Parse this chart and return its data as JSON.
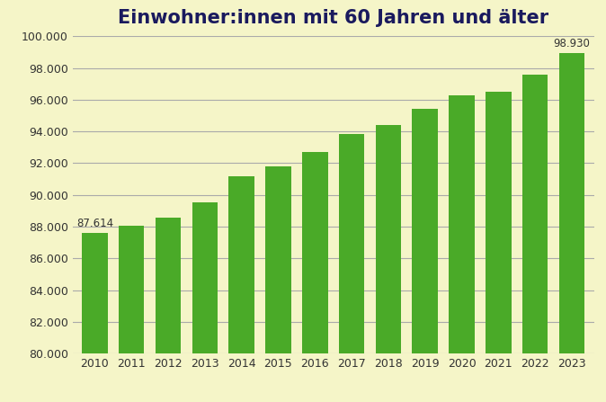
{
  "title": "Einwohner:innen mit 60 Jahren und älter",
  "years": [
    2010,
    2011,
    2012,
    2013,
    2014,
    2015,
    2016,
    2017,
    2018,
    2019,
    2020,
    2021,
    2022,
    2023
  ],
  "values": [
    87614,
    88050,
    88550,
    89550,
    91200,
    91780,
    92700,
    93850,
    94400,
    95400,
    96300,
    96500,
    97550,
    98930
  ],
  "bar_color": "#4aaa28",
  "background_color": "#f5f5c8",
  "title_color": "#1a1a5e",
  "axis_color": "#333333",
  "grid_color": "#aaaaaa",
  "ylim": [
    80000,
    100000
  ],
  "ytick_step": 2000,
  "label_first": "87.614",
  "label_last": "98.930",
  "title_fontsize": 15,
  "tick_fontsize": 9,
  "label_fontsize": 8.5,
  "bar_width": 0.7
}
